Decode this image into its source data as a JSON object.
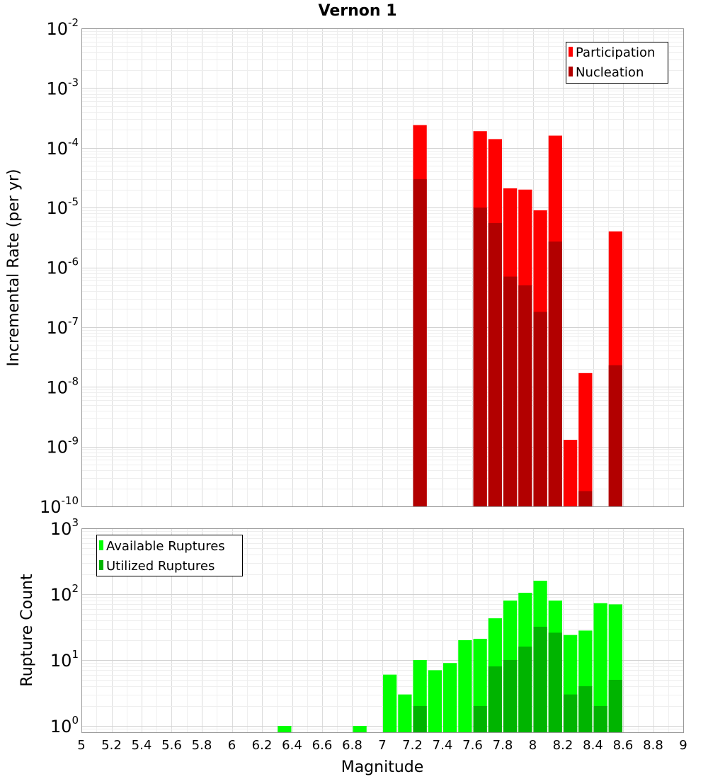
{
  "chart_data": [
    {
      "type": "bar",
      "title": "Vernon 1",
      "xlabel": "",
      "ylabel": "Incremental Rate (per yr)",
      "yscale": "log",
      "xlim": [
        5,
        9
      ],
      "ylim": [
        1e-10,
        0.01
      ],
      "ytick_exponents": [
        "-2",
        "-3",
        "-4",
        "-5",
        "-6",
        "-7",
        "-8",
        "-9",
        "-10"
      ],
      "grid": true,
      "legend_position": "top-right",
      "bin_width": 0.1,
      "x": [
        7.25,
        7.65,
        7.75,
        7.85,
        7.95,
        8.05,
        8.15,
        8.25,
        8.35,
        8.55
      ],
      "series": [
        {
          "name": "Participation",
          "color": "#ff0000",
          "values": [
            0.00024,
            0.00019,
            0.00014,
            2.1e-05,
            2e-05,
            9e-06,
            0.00016,
            1.3e-09,
            1.7e-08,
            4e-06
          ]
        },
        {
          "name": "Nucleation",
          "color": "#b20000",
          "values": [
            3e-05,
            1e-05,
            5.5e-06,
            7e-07,
            5e-07,
            1.8e-07,
            2.7e-06,
            null,
            1.8e-10,
            2.3e-08
          ]
        }
      ]
    },
    {
      "type": "bar",
      "title": "",
      "xlabel": "Magnitude",
      "ylabel": "Rupture Count",
      "yscale": "log",
      "xlim": [
        5,
        9
      ],
      "ylim": [
        0.8,
        1000
      ],
      "ytick_exponents": [
        "3",
        "2",
        "1",
        "0"
      ],
      "grid": true,
      "legend_position": "top-left",
      "bin_width": 0.1,
      "x_ticks": [
        "5",
        "5.2",
        "5.4",
        "5.6",
        "5.8",
        "6",
        "6.2",
        "6.4",
        "6.6",
        "6.8",
        "7",
        "7.2",
        "7.4",
        "7.6",
        "7.8",
        "8",
        "8.2",
        "8.4",
        "8.6",
        "8.8",
        "9"
      ],
      "x": [
        6.35,
        6.85,
        7.05,
        7.15,
        7.25,
        7.35,
        7.45,
        7.55,
        7.65,
        7.75,
        7.85,
        7.95,
        8.05,
        8.15,
        8.25,
        8.35,
        8.45,
        8.55
      ],
      "series": [
        {
          "name": "Available Ruptures",
          "color": "#00ff00",
          "values": [
            1,
            1,
            6,
            3,
            10,
            7,
            9,
            20,
            21,
            43,
            80,
            105,
            160,
            80,
            24,
            28,
            73,
            70
          ]
        },
        {
          "name": "Utilized Ruptures",
          "color": "#00b400",
          "values": [
            null,
            null,
            null,
            null,
            2,
            null,
            null,
            null,
            2,
            8,
            10,
            16,
            32,
            26,
            3,
            4,
            2,
            5
          ]
        }
      ]
    }
  ]
}
